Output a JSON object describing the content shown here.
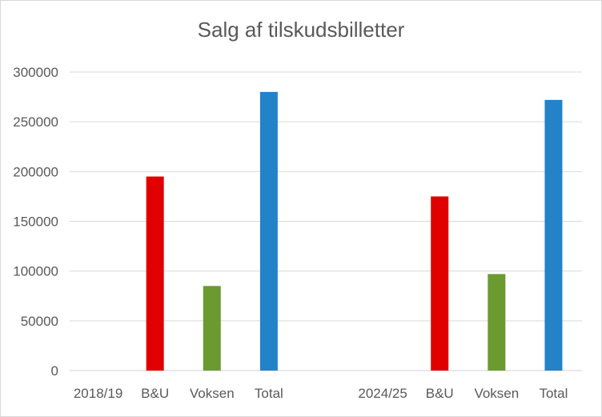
{
  "chart_data": {
    "type": "bar",
    "title": "Salg af tilskudsbilletter",
    "xlabel": "",
    "ylabel": "",
    "ylim": [
      0,
      300000
    ],
    "yticks": [
      0,
      50000,
      100000,
      150000,
      200000,
      250000,
      300000
    ],
    "grid": true,
    "legend": "none",
    "categories": [
      "2018/19",
      "B&U",
      "Voksen",
      "Total",
      "",
      "2024/25",
      "B&U",
      "Voksen",
      "Total"
    ],
    "values": [
      0,
      195000,
      85000,
      280000,
      0,
      0,
      175000,
      97000,
      272000
    ],
    "bar_colors": [
      "#2e75b6",
      "#e00000",
      "#6a9a30",
      "#2382c8",
      "#2e75b6",
      "#2e75b6",
      "#e00000",
      "#6a9a30",
      "#2382c8"
    ]
  }
}
